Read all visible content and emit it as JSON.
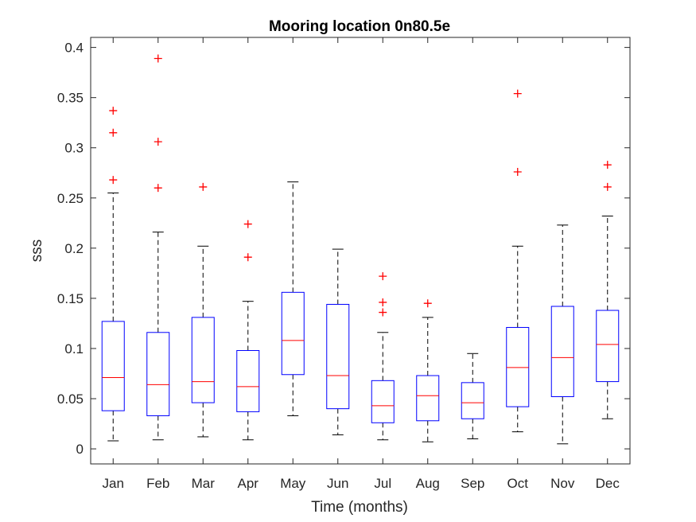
{
  "chart_data": {
    "type": "box",
    "title": "Mooring location 0n80.5e",
    "xlabel": "Time (months)",
    "ylabel": "sss",
    "ylim": [
      -0.015,
      0.41
    ],
    "yticks": [
      0,
      0.05,
      0.1,
      0.15,
      0.2,
      0.25,
      0.3,
      0.35,
      0.4
    ],
    "ytick_labels": [
      "0",
      "0.05",
      "0.1",
      "0.15",
      "0.2",
      "0.25",
      "0.3",
      "0.35",
      "0.4"
    ],
    "categories": [
      "Jan",
      "Feb",
      "Mar",
      "Apr",
      "May",
      "Jun",
      "Jul",
      "Aug",
      "Sep",
      "Oct",
      "Nov",
      "Dec"
    ],
    "boxes": [
      {
        "whisker_low": 0.008,
        "q1": 0.038,
        "median": 0.071,
        "q3": 0.127,
        "whisker_high": 0.255,
        "outliers": [
          0.268,
          0.315,
          0.337
        ]
      },
      {
        "whisker_low": 0.009,
        "q1": 0.033,
        "median": 0.064,
        "q3": 0.116,
        "whisker_high": 0.216,
        "outliers": [
          0.26,
          0.306,
          0.389
        ]
      },
      {
        "whisker_low": 0.012,
        "q1": 0.046,
        "median": 0.067,
        "q3": 0.131,
        "whisker_high": 0.202,
        "outliers": [
          0.261
        ]
      },
      {
        "whisker_low": 0.009,
        "q1": 0.037,
        "median": 0.062,
        "q3": 0.098,
        "whisker_high": 0.147,
        "outliers": [
          0.191,
          0.224
        ]
      },
      {
        "whisker_low": 0.033,
        "q1": 0.074,
        "median": 0.108,
        "q3": 0.156,
        "whisker_high": 0.266,
        "outliers": []
      },
      {
        "whisker_low": 0.014,
        "q1": 0.04,
        "median": 0.073,
        "q3": 0.144,
        "whisker_high": 0.199,
        "outliers": []
      },
      {
        "whisker_low": 0.009,
        "q1": 0.026,
        "median": 0.043,
        "q3": 0.068,
        "whisker_high": 0.116,
        "outliers": [
          0.136,
          0.146,
          0.172
        ]
      },
      {
        "whisker_low": 0.007,
        "q1": 0.028,
        "median": 0.053,
        "q3": 0.073,
        "whisker_high": 0.131,
        "outliers": [
          0.145
        ]
      },
      {
        "whisker_low": 0.01,
        "q1": 0.03,
        "median": 0.046,
        "q3": 0.066,
        "whisker_high": 0.095,
        "outliers": []
      },
      {
        "whisker_low": 0.017,
        "q1": 0.042,
        "median": 0.081,
        "q3": 0.121,
        "whisker_high": 0.202,
        "outliers": [
          0.276,
          0.354
        ]
      },
      {
        "whisker_low": 0.005,
        "q1": 0.052,
        "median": 0.091,
        "q3": 0.142,
        "whisker_high": 0.223,
        "outliers": []
      },
      {
        "whisker_low": 0.03,
        "q1": 0.067,
        "median": 0.104,
        "q3": 0.138,
        "whisker_high": 0.232,
        "outliers": [
          0.261,
          0.283
        ]
      }
    ],
    "grid": false,
    "colors": {
      "box": "#0000ff",
      "median": "#ff0000",
      "outlier": "#ff0000",
      "whisker": "#000000",
      "axis": "#262626"
    }
  }
}
